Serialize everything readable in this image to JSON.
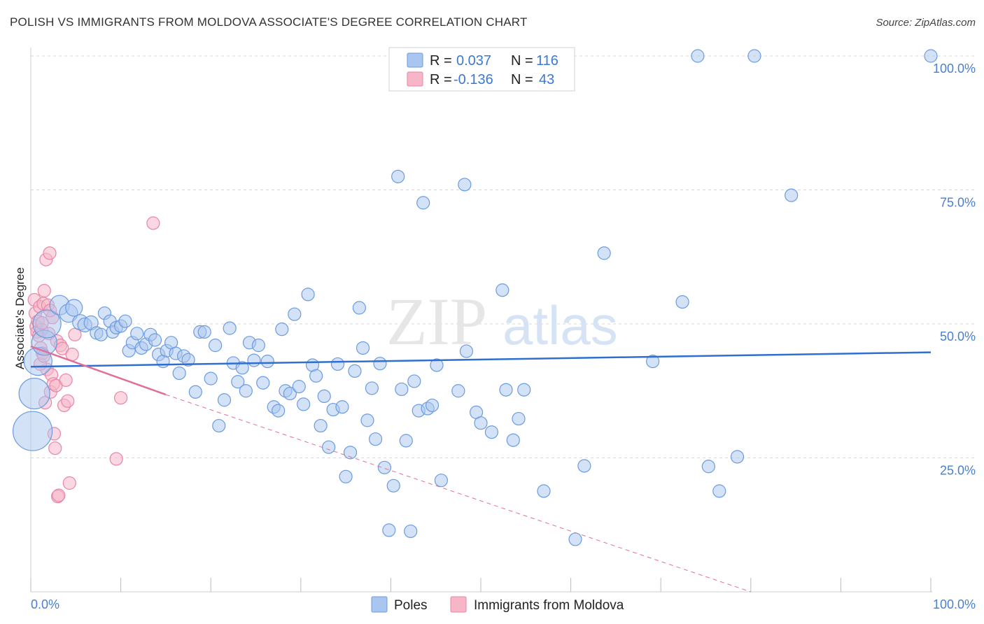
{
  "header": {
    "title": "POLISH VS IMMIGRANTS FROM MOLDOVA ASSOCIATE'S DEGREE CORRELATION CHART",
    "source": "Source: ZipAtlas.com"
  },
  "watermark": {
    "zip": "ZIP",
    "atlas": "atlas"
  },
  "stats_legend": {
    "rows": [
      {
        "r_label": "R =",
        "r_value": "0.037",
        "n_label": "N =",
        "n_value": "116"
      },
      {
        "r_label": "R =",
        "r_value": "-0.136",
        "n_label": "N =",
        "n_value": "43"
      }
    ]
  },
  "colors": {
    "poles_fill": "#a9c6f0",
    "poles_stroke": "#6b9be0",
    "poles_line": "#2f6fd0",
    "moldova_fill": "#f6b6c8",
    "moldova_stroke": "#e985a6",
    "moldova_line": "#e0709a",
    "grid": "#d8d8d8",
    "tick_text": "#4a7fd0"
  },
  "chart_data": {
    "type": "scatter",
    "title": "POLISH VS IMMIGRANTS FROM MOLDOVA ASSOCIATE'S DEGREE CORRELATION CHART",
    "xlabel": "",
    "ylabel": "Associate's Degree",
    "xlim": [
      0,
      100
    ],
    "ylim": [
      0,
      102
    ],
    "x_tick_labels": [
      "0.0%",
      "100.0%"
    ],
    "y_ticks": [
      25,
      50,
      75,
      100
    ],
    "y_tick_labels": [
      "25.0%",
      "50.0%",
      "75.0%",
      "100.0%"
    ],
    "legend": [
      "Poles",
      "Immigrants from Moldova"
    ],
    "series": [
      {
        "name": "Poles",
        "trend": {
          "x0": 0,
          "y0": 42.0,
          "x1": 100,
          "y1": 44.7
        },
        "points": [
          [
            0.2,
            30,
            28
          ],
          [
            0.4,
            37,
            22
          ],
          [
            0.8,
            43,
            20
          ],
          [
            1.5,
            46.5,
            18
          ],
          [
            1.8,
            50,
            20
          ],
          [
            3.2,
            53.5,
            14
          ],
          [
            4.2,
            52,
            13
          ],
          [
            4.8,
            53,
            12
          ],
          [
            5.5,
            50.3,
            11
          ],
          [
            6,
            49.8,
            10
          ],
          [
            6.7,
            50.2,
            10
          ],
          [
            7.3,
            48.3,
            9
          ],
          [
            7.8,
            48,
            9
          ],
          [
            8.2,
            52,
            9
          ],
          [
            8.8,
            50.5,
            9
          ],
          [
            9.1,
            48.5,
            9
          ],
          [
            9.5,
            49.3,
            9
          ],
          [
            10,
            49.6,
            9
          ],
          [
            10.5,
            50.5,
            9
          ],
          [
            10.9,
            45,
            9
          ],
          [
            11.3,
            46.5,
            9
          ],
          [
            11.8,
            48.2,
            9
          ],
          [
            12.3,
            45.5,
            9
          ],
          [
            12.8,
            46.2,
            9
          ],
          [
            13.3,
            48,
            9
          ],
          [
            13.8,
            47,
            9
          ],
          [
            14.2,
            44.3,
            9
          ],
          [
            14.7,
            43,
            9
          ],
          [
            15.1,
            45,
            9
          ],
          [
            15.6,
            46.5,
            9
          ],
          [
            16.1,
            44.5,
            9
          ],
          [
            16.5,
            40.8,
            9
          ],
          [
            17,
            44,
            9
          ],
          [
            17.5,
            43.3,
            9
          ],
          [
            18.3,
            37.3,
            9
          ],
          [
            18.8,
            48.5,
            9
          ],
          [
            19.3,
            48.5,
            9
          ],
          [
            20,
            39.8,
            9
          ],
          [
            20.5,
            46,
            9
          ],
          [
            20.9,
            31,
            9
          ],
          [
            21.5,
            35.8,
            9
          ],
          [
            22.1,
            49.2,
            9
          ],
          [
            22.5,
            42.7,
            9
          ],
          [
            23,
            39.2,
            9
          ],
          [
            23.5,
            41.8,
            9
          ],
          [
            23.9,
            37.5,
            9
          ],
          [
            24.3,
            46.5,
            9
          ],
          [
            24.8,
            43.2,
            9
          ],
          [
            25.3,
            46,
            9
          ],
          [
            25.8,
            39,
            9
          ],
          [
            26.3,
            43,
            9
          ],
          [
            27,
            34.5,
            9
          ],
          [
            27.5,
            33.8,
            9
          ],
          [
            27.9,
            49,
            9
          ],
          [
            28.3,
            37.5,
            9
          ],
          [
            28.8,
            37,
            9
          ],
          [
            29.3,
            51.8,
            9
          ],
          [
            29.8,
            38.3,
            9
          ],
          [
            30.3,
            35,
            9
          ],
          [
            30.8,
            55.5,
            9
          ],
          [
            31.3,
            42.3,
            9
          ],
          [
            31.7,
            40.3,
            9
          ],
          [
            32.2,
            31,
            9
          ],
          [
            32.6,
            36.5,
            9
          ],
          [
            33.1,
            27,
            9
          ],
          [
            33.6,
            34,
            9
          ],
          [
            34.1,
            42.5,
            9
          ],
          [
            34.6,
            34.5,
            9
          ],
          [
            35,
            21.5,
            9
          ],
          [
            35.5,
            26,
            9
          ],
          [
            36,
            41.2,
            9
          ],
          [
            36.5,
            53,
            9
          ],
          [
            36.9,
            45.5,
            9
          ],
          [
            37.4,
            32,
            9
          ],
          [
            37.9,
            38,
            9
          ],
          [
            38.3,
            28.5,
            9
          ],
          [
            38.8,
            42.6,
            9
          ],
          [
            39.3,
            23.2,
            9
          ],
          [
            39.8,
            11.5,
            9
          ],
          [
            40.3,
            19.8,
            9
          ],
          [
            40.8,
            77.5,
            9
          ],
          [
            41.2,
            37.8,
            9
          ],
          [
            41.7,
            28.2,
            9
          ],
          [
            42.2,
            11.3,
            9
          ],
          [
            42.6,
            39.3,
            9
          ],
          [
            43.1,
            33.8,
            9
          ],
          [
            43.6,
            72.6,
            9
          ],
          [
            44.1,
            34.2,
            9
          ],
          [
            44.6,
            34.8,
            9
          ],
          [
            45.1,
            42.3,
            9
          ],
          [
            45.6,
            20.8,
            9
          ],
          [
            47.5,
            37.5,
            9
          ],
          [
            48.2,
            76,
            9
          ],
          [
            48.4,
            44.9,
            9
          ],
          [
            49.5,
            33.5,
            9
          ],
          [
            50,
            31.5,
            9
          ],
          [
            51.2,
            29.8,
            9
          ],
          [
            52.4,
            56.3,
            9
          ],
          [
            52.8,
            37.7,
            9
          ],
          [
            53.6,
            28.3,
            9
          ],
          [
            54.2,
            32.3,
            9
          ],
          [
            54.8,
            37.7,
            9
          ],
          [
            57,
            18.8,
            9
          ],
          [
            60.5,
            9.8,
            9
          ],
          [
            61.5,
            23.5,
            9
          ],
          [
            63.7,
            63.2,
            9
          ],
          [
            69.1,
            43,
            9
          ],
          [
            72.4,
            54.1,
            9
          ],
          [
            74.1,
            100,
            9
          ],
          [
            75.3,
            23.4,
            9
          ],
          [
            76.5,
            18.8,
            9
          ],
          [
            78.5,
            25.2,
            9
          ],
          [
            80.4,
            100,
            9
          ],
          [
            84.5,
            74,
            9
          ],
          [
            100,
            100,
            9
          ]
        ]
      },
      {
        "name": "Immigrants from Moldova",
        "trend": {
          "x0": 0,
          "y0": 45.8,
          "x1": 15,
          "y1": 36.8,
          "dash_x1": 80,
          "dash_y1": 0
        },
        "points": [
          [
            0.4,
            54.5,
            9
          ],
          [
            0.5,
            52,
            9
          ],
          [
            0.6,
            49.5,
            9
          ],
          [
            0.7,
            48.5,
            9
          ],
          [
            0.8,
            50.5,
            9
          ],
          [
            0.9,
            47.8,
            9
          ],
          [
            1.0,
            53.2,
            9
          ],
          [
            1.1,
            45.5,
            9
          ],
          [
            1.2,
            48.9,
            9
          ],
          [
            1.3,
            44.5,
            9
          ],
          [
            1.4,
            53.8,
            9
          ],
          [
            1.5,
            56.2,
            9
          ],
          [
            1.6,
            35.3,
            9
          ],
          [
            1.7,
            62,
            9
          ],
          [
            1.8,
            41.5,
            9
          ],
          [
            1.9,
            53.5,
            9
          ],
          [
            2.0,
            48.2,
            9
          ],
          [
            2.1,
            63.2,
            9
          ],
          [
            2.2,
            37.3,
            9
          ],
          [
            2.3,
            40.5,
            9
          ],
          [
            2.4,
            51.2,
            9
          ],
          [
            2.5,
            38.8,
            9
          ],
          [
            2.6,
            29.5,
            9
          ],
          [
            2.7,
            26.8,
            9
          ],
          [
            2.8,
            38.5,
            9
          ],
          [
            2.9,
            46.8,
            9
          ],
          [
            3.0,
            17.8,
            9
          ],
          [
            3.1,
            18,
            9
          ],
          [
            3.3,
            46,
            9
          ],
          [
            3.5,
            45.4,
            9
          ],
          [
            3.7,
            34.8,
            9
          ],
          [
            3.9,
            39.5,
            9
          ],
          [
            4.1,
            35.6,
            9
          ],
          [
            4.3,
            20.3,
            9
          ],
          [
            4.6,
            44.3,
            9
          ],
          [
            4.9,
            48,
            9
          ],
          [
            9.5,
            24.8,
            9
          ],
          [
            10.0,
            36.2,
            9
          ],
          [
            13.6,
            68.8,
            9
          ],
          [
            1.05,
            42.5,
            9
          ],
          [
            1.25,
            50.2,
            9
          ],
          [
            1.45,
            44,
            9
          ],
          [
            2.15,
            52.5,
            9
          ]
        ]
      }
    ]
  },
  "bottom_legend": {
    "items": [
      {
        "label": "Poles"
      },
      {
        "label": "Immigrants from Moldova"
      }
    ]
  }
}
